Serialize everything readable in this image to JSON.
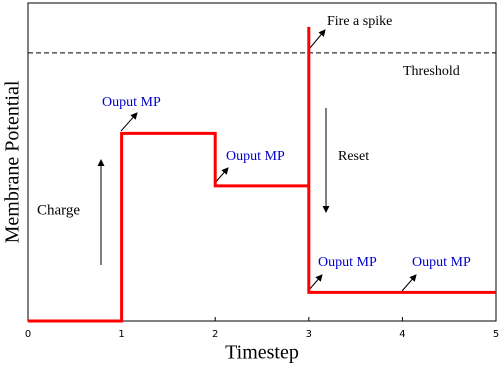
{
  "chart_data": {
    "type": "line",
    "x_label": "Timestep",
    "y_label": "Membrane Potential",
    "xlim": [
      0,
      5
    ],
    "xticks": [
      0,
      1,
      2,
      3,
      4,
      5
    ],
    "ylim": [
      0,
      1
    ],
    "series": [
      {
        "color": "#ff0000",
        "x": [
          0,
          1,
          1,
          2,
          2,
          3,
          3,
          3,
          5
        ],
        "values": [
          0,
          0,
          0.59,
          0.59,
          0.425,
          0.425,
          0.925,
          0.09,
          0.09
        ]
      }
    ],
    "threshold": 0.843,
    "annotations": [
      {
        "text": "Fire a spike",
        "color": "#000000"
      },
      {
        "text": "Threshold",
        "color": "#000000"
      },
      {
        "text": "Ouput MP",
        "color": "#0000cc"
      },
      {
        "text": "Ouput MP",
        "color": "#0000cc"
      },
      {
        "text": "Ouput MP",
        "color": "#0000cc"
      },
      {
        "text": "Ouput MP",
        "color": "#0000cc"
      },
      {
        "text": "Charge",
        "color": "#000000"
      },
      {
        "text": "Reset",
        "color": "#000000"
      }
    ]
  }
}
